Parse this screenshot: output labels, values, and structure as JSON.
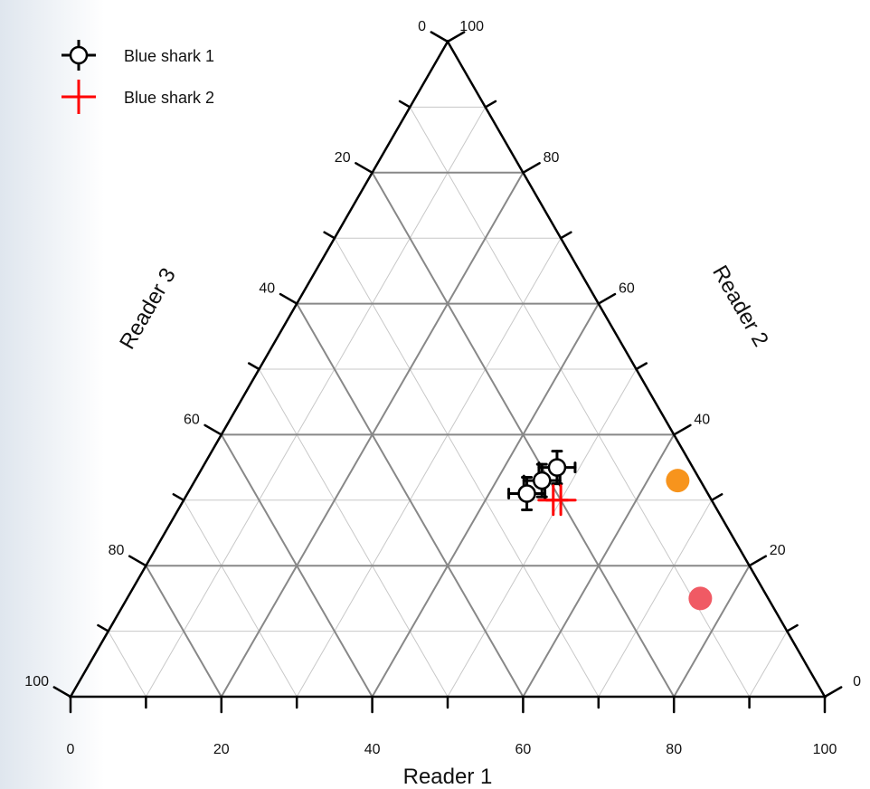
{
  "chart_data": {
    "type": "scatter",
    "subtype": "ternary",
    "title": "",
    "axes": {
      "bottom": {
        "label": "Reader 1",
        "range": [
          0,
          100
        ],
        "ticks": [
          "0",
          "20",
          "40",
          "60",
          "80",
          "100"
        ]
      },
      "right": {
        "label": "Reader 2",
        "range": [
          0,
          100
        ],
        "ticks": [
          "0",
          "20",
          "40",
          "60",
          "80",
          "100"
        ]
      },
      "left": {
        "label": "Reader 3",
        "range": [
          0,
          100
        ],
        "ticks": [
          "0",
          "20",
          "40",
          "60",
          "80",
          "100"
        ]
      }
    },
    "grid": true,
    "legend": {
      "position": "top-left",
      "entries": [
        "Blue shark 1",
        "Blue shark 2"
      ]
    },
    "series": [
      {
        "name": "Blue shark 1",
        "marker": "circle-errorbar",
        "color": "#000000",
        "points": [
          {
            "reader1": 46,
            "reader2": 33,
            "reader3": 21
          },
          {
            "reader1": 47,
            "reader2": 35,
            "reader3": 18
          },
          {
            "reader1": 45,
            "reader2": 31,
            "reader3": 24
          }
        ]
      },
      {
        "name": "Blue shark 2",
        "marker": "cross",
        "color": "#ff0000",
        "points": [
          {
            "reader1": 49,
            "reader2": 30,
            "reader3": 21
          },
          {
            "reader1": 50,
            "reader2": 30,
            "reader3": 20
          }
        ]
      },
      {
        "marker": "dot",
        "color": "#f7941d",
        "points": [
          {
            "reader1": 64,
            "reader2": 33,
            "reader3": 3
          }
        ]
      },
      {
        "marker": "dot",
        "color": "#f05a64",
        "points": [
          {
            "reader1": 76,
            "reader2": 15,
            "reader3": 9
          }
        ]
      }
    ]
  }
}
